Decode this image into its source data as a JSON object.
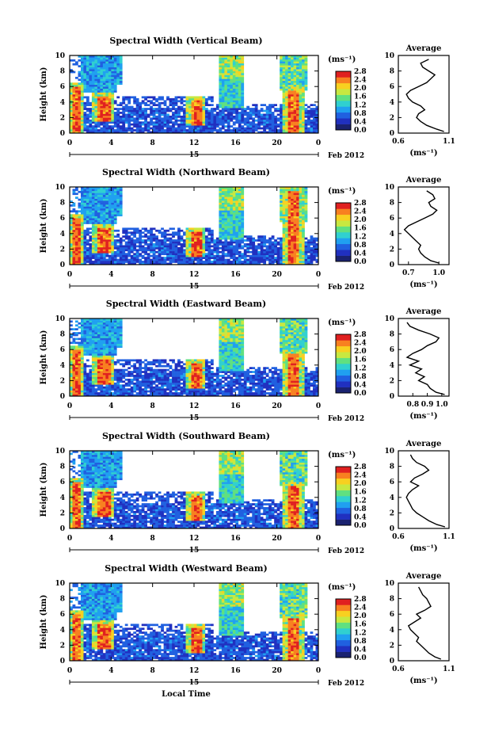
{
  "figure": {
    "xlabel_bottom": "Local Time",
    "date_label": "Feb 2012",
    "day_label": "15",
    "x_ticks": [
      "0",
      "4",
      "8",
      "12",
      "16",
      "20",
      "0"
    ],
    "y_ticks": [
      "0",
      "2",
      "4",
      "6",
      "8",
      "10"
    ],
    "ylabel": "Height (km)",
    "colorbar_unit": "(ms⁻¹)",
    "colorbar_ticks": [
      "0.0",
      "0.4",
      "0.8",
      "1.2",
      "1.6",
      "2.0",
      "2.4",
      "2.8"
    ],
    "avg_title": "Average",
    "avg_unit": "(ms⁻¹)"
  },
  "colors": {
    "colormap": [
      "#1a2270",
      "#2030c0",
      "#2060e0",
      "#20a0f0",
      "#30d0d0",
      "#60e080",
      "#c8e840",
      "#f8d020",
      "#f88020",
      "#e02020"
    ],
    "background": "#ffffff",
    "ink": "#000000"
  },
  "chart_data": [
    {
      "type": "heatmap",
      "title": "Spectral Width (Vertical Beam)",
      "xlabel": "",
      "ylabel": "Height (km)",
      "xlim": [
        0,
        24
      ],
      "ylim": [
        0,
        10
      ],
      "clim": [
        0.0,
        2.8
      ],
      "colorbar_label": "(ms⁻¹)",
      "average_profile": {
        "title": "Average",
        "xlabel": "(ms⁻¹)",
        "x_ticks": [
          "0.6",
          "1.1"
        ],
        "xlim": [
          0.6,
          1.1
        ],
        "ylim": [
          0,
          10
        ],
        "height_km": [
          0.2,
          0.5,
          1,
          1.5,
          2,
          2.5,
          3,
          3.5,
          4,
          4.5,
          5,
          5.5,
          6,
          6.5,
          7,
          7.5,
          8,
          8.5,
          9,
          9.5
        ],
        "value": [
          1.05,
          0.98,
          0.88,
          0.82,
          0.78,
          0.8,
          0.86,
          0.82,
          0.74,
          0.7,
          0.68,
          0.72,
          0.8,
          0.88,
          0.92,
          0.96,
          0.9,
          0.84,
          0.82,
          0.9
        ]
      }
    },
    {
      "type": "heatmap",
      "title": "Spectral Width (Northward Beam)",
      "xlabel": "",
      "ylabel": "Height (km)",
      "xlim": [
        0,
        24
      ],
      "ylim": [
        0,
        10
      ],
      "clim": [
        0.0,
        2.8
      ],
      "colorbar_label": "(ms⁻¹)",
      "average_profile": {
        "title": "Average",
        "xlabel": "(ms⁻¹)",
        "x_ticks": [
          "0.7",
          "1.0"
        ],
        "xlim": [
          0.6,
          1.1
        ],
        "ylim": [
          0,
          10
        ],
        "height_km": [
          0.2,
          0.5,
          1,
          1.5,
          2,
          2.5,
          3,
          3.5,
          4,
          4.5,
          5,
          5.5,
          6,
          6.5,
          7,
          7.5,
          8,
          8.5,
          9,
          9.5
        ],
        "value": [
          1.0,
          0.92,
          0.86,
          0.82,
          0.8,
          0.82,
          0.78,
          0.74,
          0.7,
          0.66,
          0.7,
          0.78,
          0.86,
          0.94,
          0.98,
          0.92,
          0.9,
          0.96,
          0.94,
          0.88
        ]
      }
    },
    {
      "type": "heatmap",
      "title": "Spectral Width (Eastward Beam)",
      "xlabel": "",
      "ylabel": "Height (km)",
      "xlim": [
        0,
        24
      ],
      "ylim": [
        0,
        10
      ],
      "clim": [
        0.0,
        2.8
      ],
      "colorbar_label": "(ms⁻¹)",
      "average_profile": {
        "title": "Average",
        "xlabel": "(ms⁻¹)",
        "x_ticks": [
          "0.8",
          "0.9",
          "1.0"
        ],
        "xlim": [
          0.7,
          1.05
        ],
        "ylim": [
          0,
          10
        ],
        "height_km": [
          0.2,
          0.5,
          1,
          1.5,
          2,
          2.5,
          3,
          3.5,
          4,
          4.5,
          5,
          5.5,
          6,
          6.5,
          7,
          7.5,
          8,
          8.5,
          9,
          9.5
        ],
        "value": [
          1.02,
          0.96,
          0.92,
          0.9,
          0.84,
          0.88,
          0.82,
          0.86,
          0.78,
          0.84,
          0.76,
          0.8,
          0.86,
          0.9,
          0.96,
          0.98,
          0.92,
          0.84,
          0.78,
          0.76
        ]
      }
    },
    {
      "type": "heatmap",
      "title": "Spectral Width (Southward Beam)",
      "xlabel": "",
      "ylabel": "Height (km)",
      "xlim": [
        0,
        24
      ],
      "ylim": [
        0,
        10
      ],
      "clim": [
        0.0,
        2.8
      ],
      "colorbar_label": "(ms⁻¹)",
      "average_profile": {
        "title": "Average",
        "xlabel": "(ms⁻¹)",
        "x_ticks": [
          "0.6",
          "1.1"
        ],
        "xlim": [
          0.6,
          1.1
        ],
        "ylim": [
          0,
          10
        ],
        "height_km": [
          0.2,
          0.5,
          1,
          1.5,
          2,
          2.5,
          3,
          3.5,
          4,
          4.5,
          5,
          5.5,
          6,
          6.5,
          7,
          7.5,
          8,
          8.5,
          9,
          9.5
        ],
        "value": [
          1.06,
          0.98,
          0.9,
          0.84,
          0.78,
          0.74,
          0.72,
          0.7,
          0.68,
          0.7,
          0.74,
          0.8,
          0.72,
          0.76,
          0.84,
          0.9,
          0.86,
          0.78,
          0.74,
          0.72
        ]
      }
    },
    {
      "type": "heatmap",
      "title": "Spectral Width (Westward Beam)",
      "xlabel": "Local Time",
      "ylabel": "Height (km)",
      "xlim": [
        0,
        24
      ],
      "ylim": [
        0,
        10
      ],
      "clim": [
        0.0,
        2.8
      ],
      "colorbar_label": "(ms⁻¹)",
      "average_profile": {
        "title": "Average",
        "xlabel": "(ms⁻¹)",
        "x_ticks": [
          "0.6",
          "1.1"
        ],
        "xlim": [
          0.6,
          1.1
        ],
        "ylim": [
          0,
          10
        ],
        "height_km": [
          0.2,
          0.5,
          1,
          1.5,
          2,
          2.5,
          3,
          3.5,
          4,
          4.5,
          5,
          5.5,
          6,
          6.5,
          7,
          7.5,
          8,
          8.5,
          9,
          9.5
        ],
        "value": [
          1.02,
          0.96,
          0.9,
          0.86,
          0.82,
          0.78,
          0.8,
          0.76,
          0.72,
          0.7,
          0.76,
          0.82,
          0.78,
          0.86,
          0.92,
          0.9,
          0.88,
          0.84,
          0.82,
          0.8
        ]
      }
    }
  ]
}
